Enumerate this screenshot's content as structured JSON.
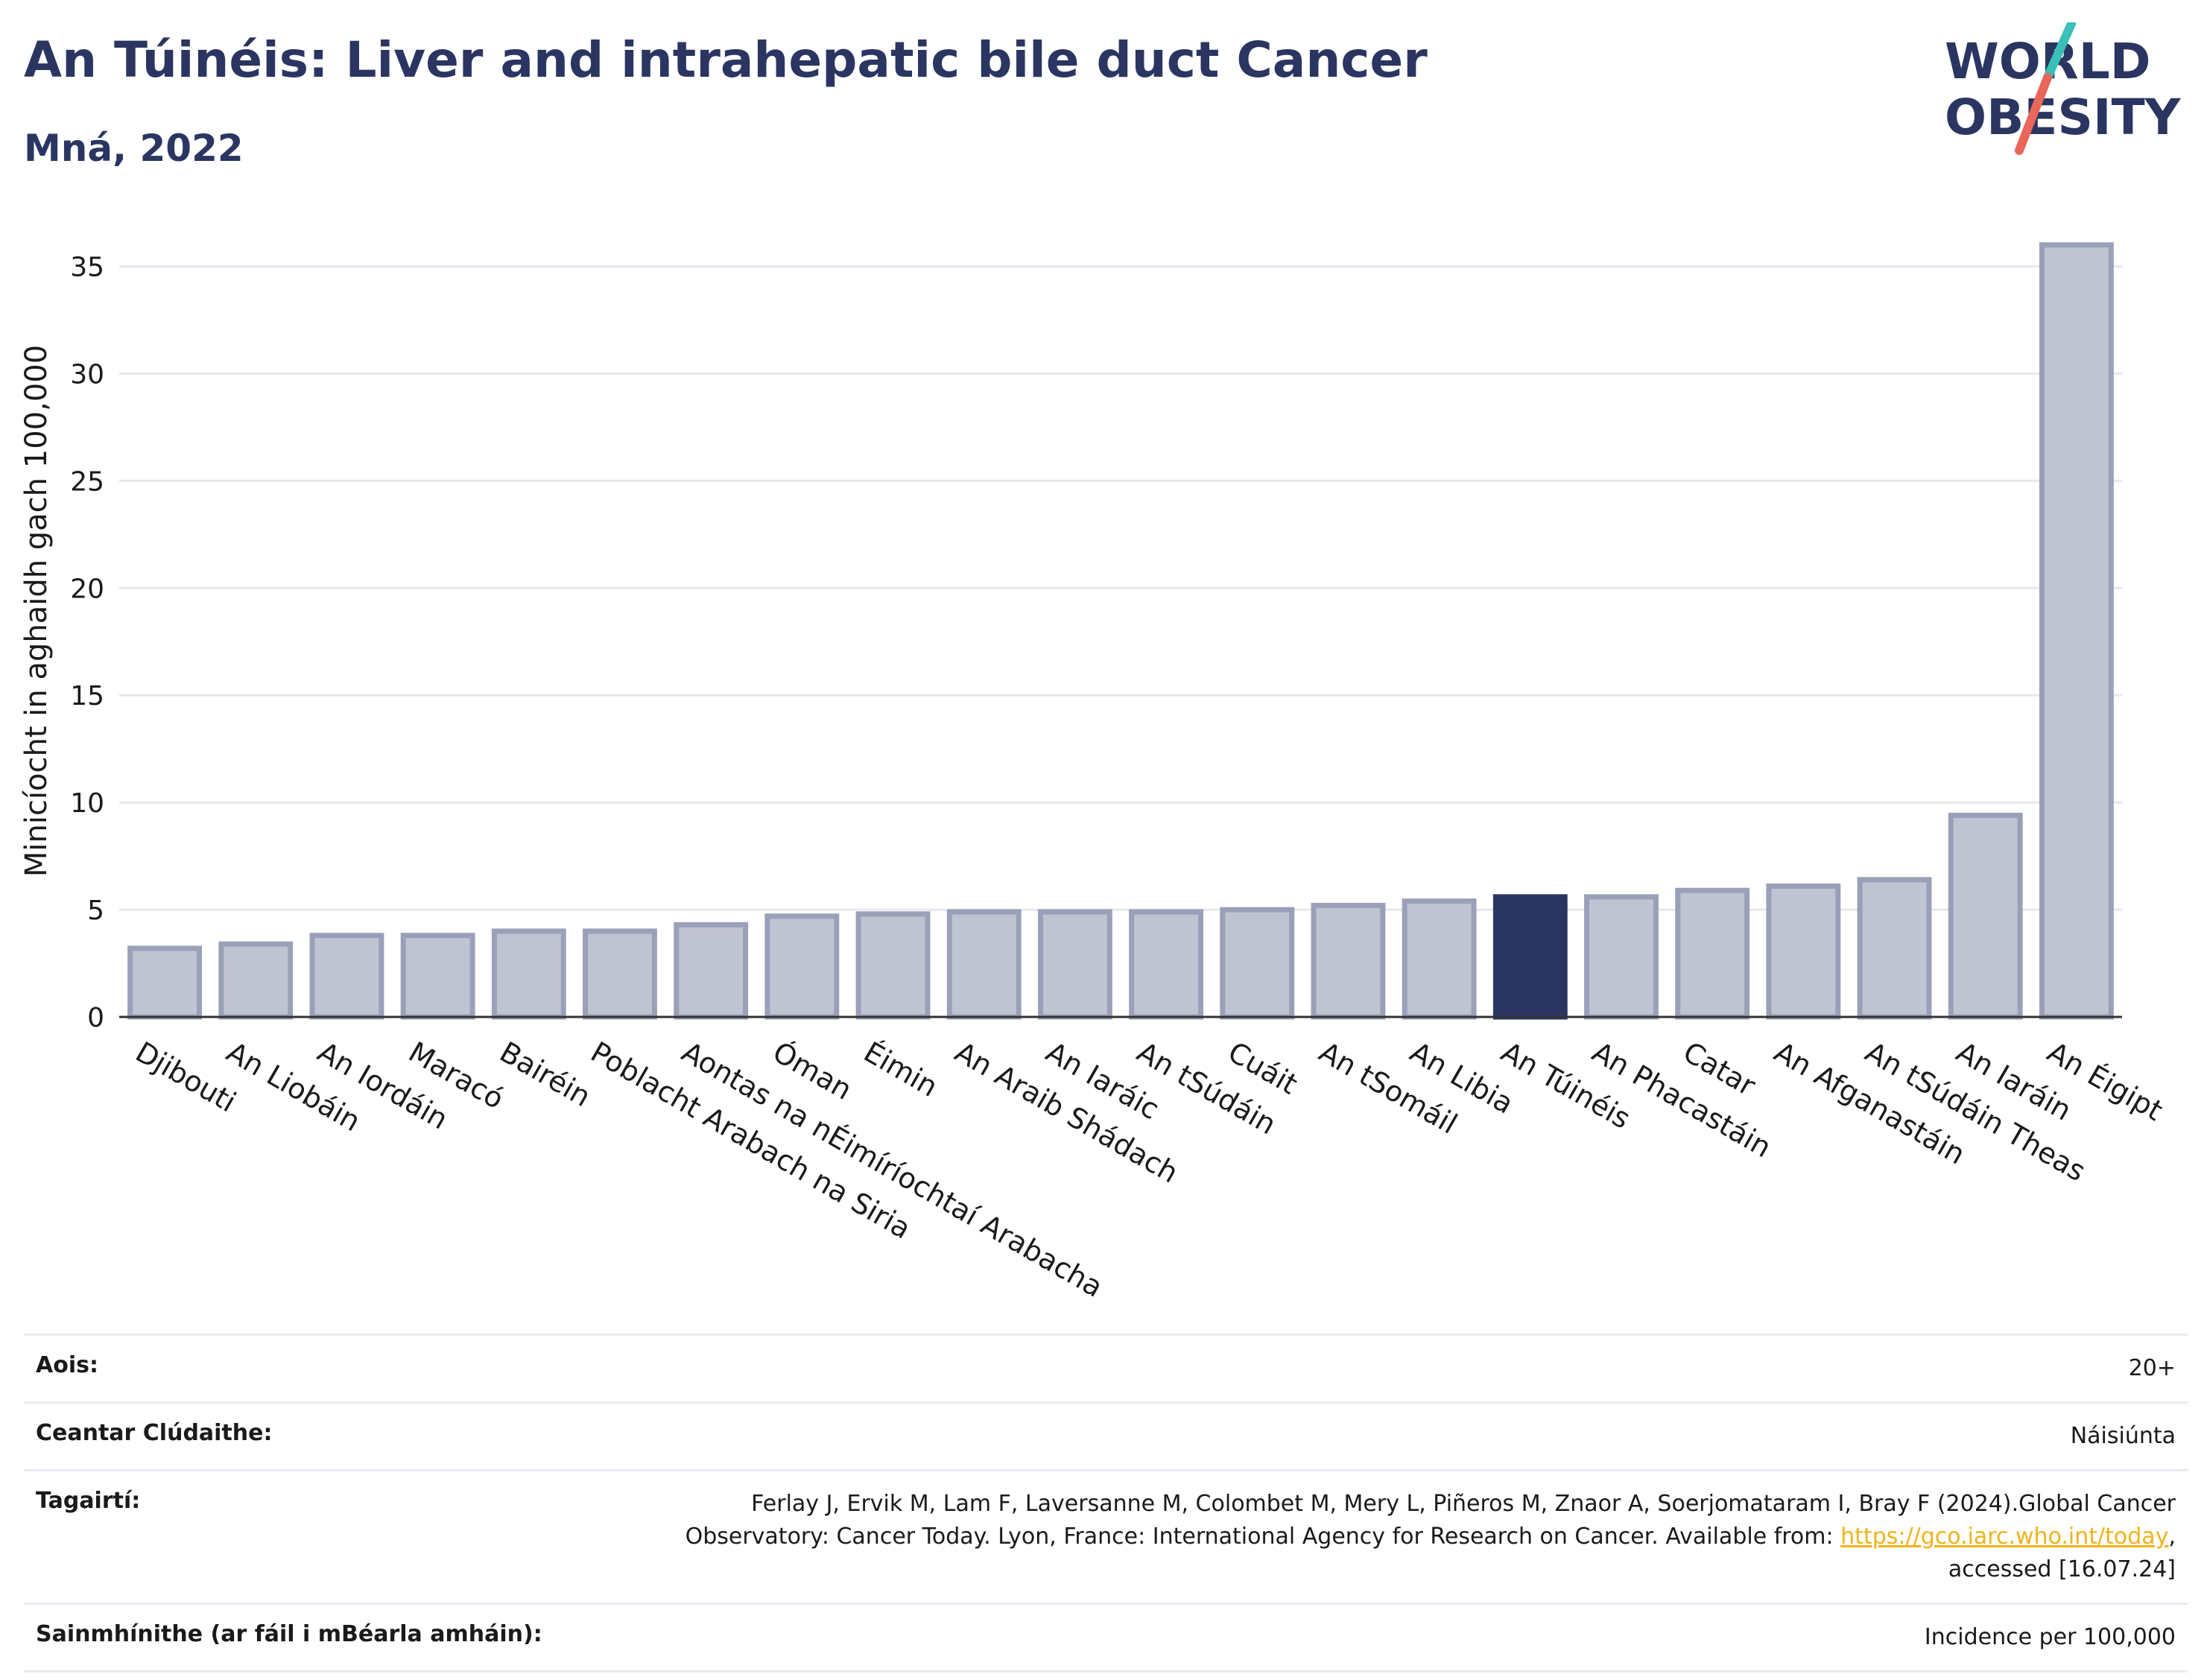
{
  "header": {
    "title": "An Túinéis: Liver and intrahepatic bile duct Cancer",
    "subtitle": "Mná, 2022"
  },
  "logo": {
    "line1": "WORLD",
    "line2": "OBESITY",
    "text_color": "#2b3561",
    "slash_teal": "#3bbfb8",
    "slash_coral": "#e8665a"
  },
  "chart_data": {
    "type": "bar",
    "ylabel": "Minicíocht in aghaidh gach 100,000",
    "ylim": [
      0,
      37
    ],
    "yticks": [
      0,
      5,
      10,
      15,
      20,
      25,
      30,
      35
    ],
    "grid": true,
    "highlight": "An Túinéis",
    "colors": {
      "bar": "#c0c3d1",
      "bar_stroke": "#9aa0b8",
      "highlight": "#2b3561",
      "grid": "#e6e8ee",
      "axis": "#333333"
    },
    "categories": [
      "Djibouti",
      "An Liobáin",
      "An Iordáin",
      "Maracó",
      "Bairéin",
      "Poblacht Arabach na Siria",
      "Aontas na nÉimíríochtaí Arabacha",
      "Óman",
      "Éimin",
      "An Araib Shádach",
      "An Iaráic",
      "An tSúdáin",
      "Cuáit",
      "An tSomáil",
      "An Libia",
      "An Túinéis",
      "An Phacastáin",
      "Catar",
      "An Afganastáin",
      "An tSúdáin Theas",
      "An Iaráin",
      "An Éigipt"
    ],
    "values": [
      3.2,
      3.4,
      3.8,
      3.8,
      4.0,
      4.0,
      4.3,
      4.7,
      4.8,
      4.9,
      4.9,
      4.9,
      5.0,
      5.2,
      5.4,
      5.6,
      5.6,
      5.9,
      6.1,
      6.4,
      9.4,
      36.0
    ]
  },
  "info": {
    "age_label": "Aois:",
    "age_value": "20+",
    "area_label": "Ceantar Clúdaithe:",
    "area_value": "Náisiúnta",
    "ref_label": "Tagairtí:",
    "ref_text": "Ferlay J, Ervik M, Lam F, Laversanne M, Colombet M, Mery L, Piñeros M, Znaor A, Soerjomataram I, Bray F (2024).Global Cancer Observatory: Cancer Today. Lyon, France: International Agency for Research on Cancer. Available from: ",
    "ref_link": "https://gco.iarc.who.int/today",
    "ref_tail": ", accessed [16.07.24]",
    "def_label": "Sainmhínithe (ar fáil i mBéarla amháin):",
    "def_value": "Incidence per 100,000"
  }
}
